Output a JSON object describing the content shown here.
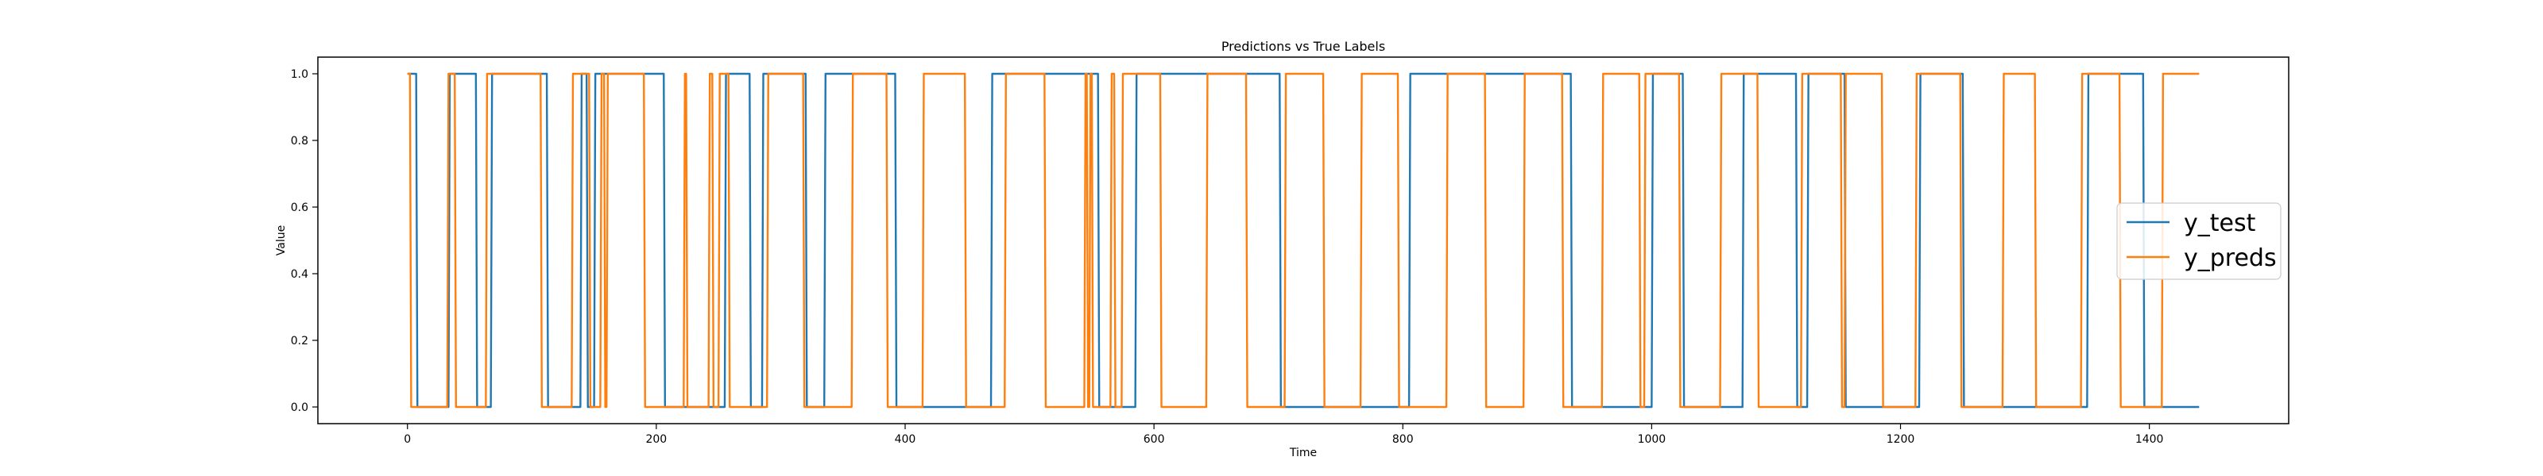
{
  "chart_data": {
    "type": "line",
    "title": "Predictions vs True Labels",
    "xlabel": "Time",
    "ylabel": "Value",
    "xlim": [
      -72,
      1512
    ],
    "ylim": [
      -0.05,
      1.05
    ],
    "xticks": [
      0,
      200,
      400,
      600,
      800,
      1000,
      1200,
      1400
    ],
    "yticks": [
      0.0,
      0.2,
      0.4,
      0.6,
      0.8,
      1.0
    ],
    "xtick_labels": [
      "0",
      "200",
      "400",
      "600",
      "800",
      "1000",
      "1200",
      "1400"
    ],
    "ytick_labels": [
      "0.0",
      "0.2",
      "0.4",
      "0.6",
      "0.8",
      "1.0"
    ],
    "grid": false,
    "legend_position": "right",
    "series": [
      {
        "name": "y_test",
        "color": "#1f77b4",
        "points": [
          [
            0,
            1
          ],
          [
            7,
            1
          ],
          [
            8,
            0
          ],
          [
            33,
            0
          ],
          [
            34,
            1
          ],
          [
            55,
            1
          ],
          [
            56,
            0
          ],
          [
            67,
            0
          ],
          [
            68,
            1
          ],
          [
            112,
            1
          ],
          [
            113,
            0
          ],
          [
            139,
            0
          ],
          [
            140,
            1
          ],
          [
            144,
            1
          ],
          [
            145,
            0
          ],
          [
            150,
            0
          ],
          [
            151,
            1
          ],
          [
            206,
            1
          ],
          [
            207,
            0
          ],
          [
            255,
            0
          ],
          [
            256,
            1
          ],
          [
            275,
            1
          ],
          [
            276,
            0
          ],
          [
            285,
            0
          ],
          [
            286,
            1
          ],
          [
            320,
            1
          ],
          [
            321,
            0
          ],
          [
            335,
            0
          ],
          [
            336,
            1
          ],
          [
            392,
            1
          ],
          [
            393,
            0
          ],
          [
            469,
            0
          ],
          [
            470,
            1
          ],
          [
            555,
            1
          ],
          [
            556,
            0
          ],
          [
            585,
            0
          ],
          [
            586,
            1
          ],
          [
            701,
            1
          ],
          [
            702,
            0
          ],
          [
            805,
            0
          ],
          [
            806,
            1
          ],
          [
            935,
            1
          ],
          [
            936,
            0
          ],
          [
            1000,
            0
          ],
          [
            1001,
            1
          ],
          [
            1025,
            1
          ],
          [
            1026,
            0
          ],
          [
            1073,
            0
          ],
          [
            1074,
            1
          ],
          [
            1116,
            1
          ],
          [
            1117,
            0
          ],
          [
            1125,
            0
          ],
          [
            1126,
            1
          ],
          [
            1155,
            1
          ],
          [
            1156,
            0
          ],
          [
            1215,
            0
          ],
          [
            1216,
            1
          ],
          [
            1250,
            1
          ],
          [
            1251,
            0
          ],
          [
            1350,
            0
          ],
          [
            1351,
            1
          ],
          [
            1395,
            1
          ],
          [
            1396,
            0
          ],
          [
            1440,
            0
          ]
        ]
      },
      {
        "name": "y_preds",
        "color": "#ff7f0e",
        "points": [
          [
            0,
            1
          ],
          [
            2,
            1
          ],
          [
            3,
            0
          ],
          [
            32,
            0
          ],
          [
            33,
            1
          ],
          [
            38,
            1
          ],
          [
            39,
            0
          ],
          [
            63,
            0
          ],
          [
            64,
            1
          ],
          [
            107,
            1
          ],
          [
            108,
            0
          ],
          [
            132,
            0
          ],
          [
            133,
            1
          ],
          [
            146,
            1
          ],
          [
            147,
            0
          ],
          [
            155,
            0
          ],
          [
            156,
            1
          ],
          [
            158,
            1
          ],
          [
            159,
            0
          ],
          [
            160,
            0
          ],
          [
            161,
            1
          ],
          [
            190,
            1
          ],
          [
            191,
            0
          ],
          [
            222,
            0
          ],
          [
            223,
            1
          ],
          [
            224,
            1
          ],
          [
            225,
            0
          ],
          [
            242,
            0
          ],
          [
            243,
            1
          ],
          [
            245,
            1
          ],
          [
            246,
            0
          ],
          [
            250,
            0
          ],
          [
            251,
            1
          ],
          [
            258,
            1
          ],
          [
            259,
            0
          ],
          [
            289,
            0
          ],
          [
            290,
            1
          ],
          [
            318,
            1
          ],
          [
            319,
            0
          ],
          [
            357,
            0
          ],
          [
            358,
            1
          ],
          [
            385,
            1
          ],
          [
            386,
            0
          ],
          [
            414,
            0
          ],
          [
            415,
            1
          ],
          [
            448,
            1
          ],
          [
            449,
            0
          ],
          [
            480,
            0
          ],
          [
            481,
            1
          ],
          [
            512,
            1
          ],
          [
            513,
            0
          ],
          [
            544,
            0
          ],
          [
            545,
            1
          ],
          [
            546,
            1
          ],
          [
            547,
            0
          ],
          [
            548,
            0
          ],
          [
            549,
            1
          ],
          [
            550,
            1
          ],
          [
            551,
            0
          ],
          [
            565,
            0
          ],
          [
            566,
            1
          ],
          [
            568,
            1
          ],
          [
            569,
            0
          ],
          [
            574,
            0
          ],
          [
            575,
            1
          ],
          [
            605,
            1
          ],
          [
            606,
            0
          ],
          [
            642,
            0
          ],
          [
            643,
            1
          ],
          [
            674,
            1
          ],
          [
            675,
            0
          ],
          [
            705,
            0
          ],
          [
            706,
            1
          ],
          [
            736,
            1
          ],
          [
            737,
            0
          ],
          [
            766,
            0
          ],
          [
            767,
            1
          ],
          [
            796,
            1
          ],
          [
            797,
            0
          ],
          [
            835,
            0
          ],
          [
            836,
            1
          ],
          [
            866,
            1
          ],
          [
            867,
            0
          ],
          [
            897,
            0
          ],
          [
            898,
            1
          ],
          [
            928,
            1
          ],
          [
            929,
            0
          ],
          [
            960,
            0
          ],
          [
            961,
            1
          ],
          [
            990,
            1
          ],
          [
            991,
            0
          ],
          [
            994,
            0
          ],
          [
            995,
            1
          ],
          [
            1022,
            1
          ],
          [
            1023,
            0
          ],
          [
            1055,
            0
          ],
          [
            1056,
            1
          ],
          [
            1085,
            1
          ],
          [
            1086,
            0
          ],
          [
            1120,
            0
          ],
          [
            1121,
            1
          ],
          [
            1152,
            1
          ],
          [
            1153,
            0
          ],
          [
            1155,
            0
          ],
          [
            1156,
            1
          ],
          [
            1185,
            1
          ],
          [
            1186,
            0
          ],
          [
            1212,
            0
          ],
          [
            1213,
            1
          ],
          [
            1248,
            1
          ],
          [
            1249,
            0
          ],
          [
            1282,
            0
          ],
          [
            1283,
            1
          ],
          [
            1308,
            1
          ],
          [
            1309,
            0
          ],
          [
            1345,
            0
          ],
          [
            1346,
            1
          ],
          [
            1376,
            1
          ],
          [
            1377,
            0
          ],
          [
            1410,
            0
          ],
          [
            1411,
            1
          ],
          [
            1440,
            1
          ]
        ]
      }
    ]
  }
}
